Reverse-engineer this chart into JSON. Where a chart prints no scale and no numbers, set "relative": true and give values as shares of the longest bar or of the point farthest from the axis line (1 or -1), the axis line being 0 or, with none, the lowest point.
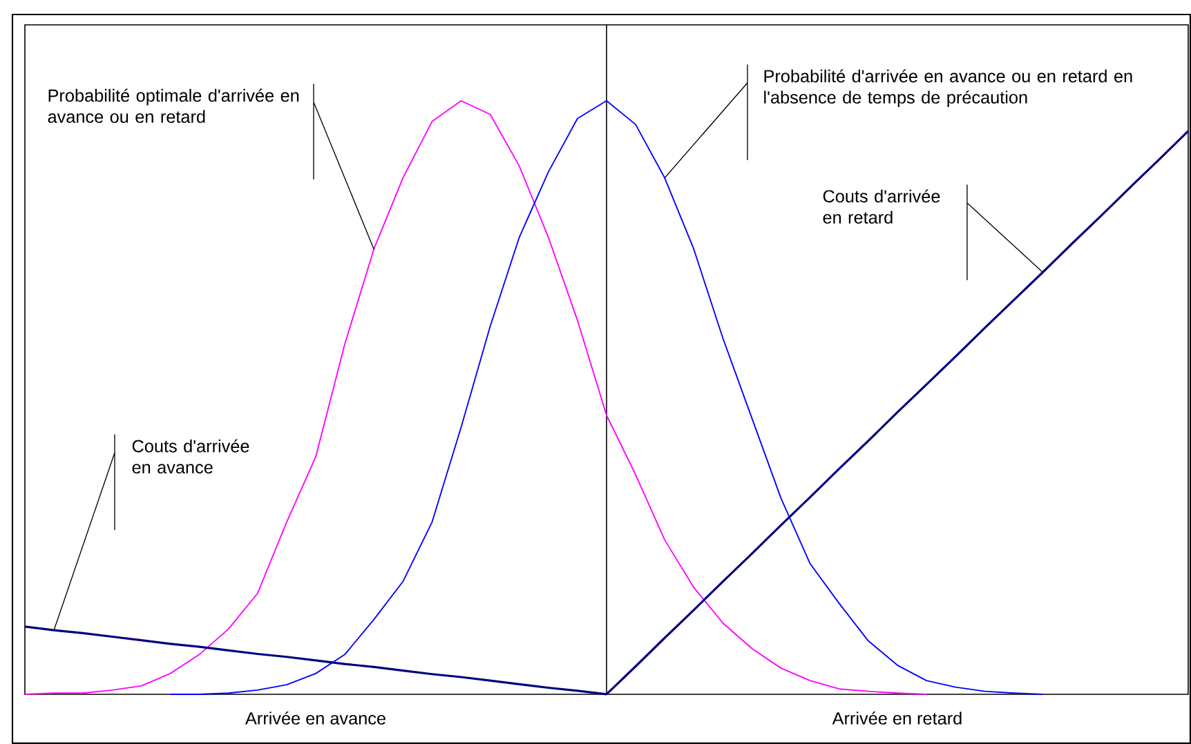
{
  "chart_data": {
    "type": "line",
    "relative": true,
    "marker": "none",
    "categories": [
      null,
      null,
      null,
      null,
      null,
      null,
      null,
      null,
      null,
      null,
      "Arrivée en avance",
      null,
      null,
      null,
      null,
      null,
      null,
      null,
      null,
      null,
      null,
      null,
      null,
      null,
      null,
      null,
      null,
      null,
      null,
      null,
      "Arrivée en retard",
      null,
      null,
      null,
      null,
      null,
      null,
      null,
      null,
      null,
      null
    ],
    "series": [
      {
        "color": "#ff00ff",
        "values": [
          0,
          0.002,
          0.002,
          0.007,
          0.014,
          0.035,
          0.067,
          0.11,
          0.17,
          0.29,
          0.4,
          0.59,
          0.75,
          0.87,
          0.965,
          1.0,
          0.977,
          0.89,
          0.77,
          0.63,
          0.47,
          0.37,
          0.26,
          0.18,
          0.12,
          0.077,
          0.044,
          0.023,
          0.009,
          0.005,
          0.002,
          0,
          null,
          null,
          null,
          null,
          null,
          null,
          null,
          null,
          null
        ]
      },
      {
        "color": "#0000ff",
        "values": [
          null,
          null,
          null,
          null,
          null,
          0,
          0,
          0.002,
          0.007,
          0.016,
          0.035,
          0.067,
          0.126,
          0.19,
          0.29,
          0.45,
          0.62,
          0.77,
          0.88,
          0.97,
          1.0,
          0.96,
          0.87,
          0.75,
          0.6,
          0.465,
          0.33,
          0.22,
          0.153,
          0.09,
          0.049,
          0.023,
          0.012,
          0.005,
          0.002,
          0,
          null,
          null,
          null,
          null,
          null
        ]
      },
      {
        "color": "#000080",
        "values": [
          0.114,
          0.108,
          0.103,
          0.097,
          0.091,
          0.085,
          0.08,
          0.074,
          0.068,
          0.063,
          0.057,
          0.051,
          0.046,
          0.04,
          0.034,
          0.029,
          0.023,
          0.017,
          0.011,
          0.006,
          0,
          null,
          null,
          null,
          null,
          null,
          null,
          null,
          null,
          null,
          null,
          null,
          null,
          null,
          null,
          null,
          null,
          null,
          null,
          null,
          null
        ]
      },
      {
        "color": "#000080",
        "values": [
          null,
          null,
          null,
          null,
          null,
          null,
          null,
          null,
          null,
          null,
          null,
          null,
          null,
          null,
          null,
          null,
          null,
          null,
          null,
          null,
          0,
          0.047,
          0.095,
          0.142,
          0.19,
          0.237,
          0.285,
          0.332,
          0.38,
          0.427,
          0.475,
          0.522,
          0.569,
          0.617,
          0.664,
          0.711,
          0.759,
          0.806,
          0.854,
          0.901,
          0.949
        ]
      }
    ],
    "annotations": [
      "Probabilité optimale d'arrivée en avance ou en retard",
      "Probabilité d'arrivée en avance ou en retard en l'absence de temps de précaution",
      "Couts d'arrivée en retard",
      "Couts d'arrivée en avance"
    ]
  }
}
